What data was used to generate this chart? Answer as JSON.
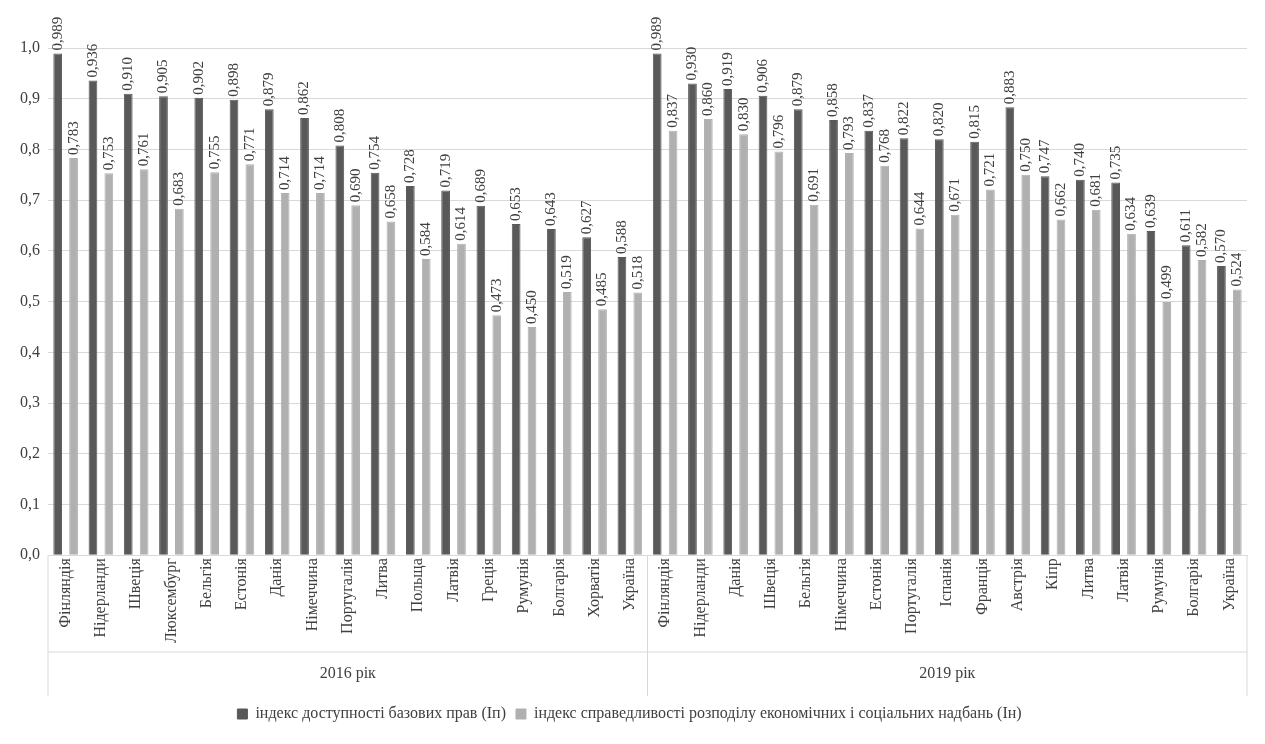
{
  "chart_data": {
    "type": "bar",
    "categories": [
      "Фінляндія",
      "Нідерланди",
      "Швеція",
      "Люксембург",
      "Бельгія",
      "Естонія",
      "Данія",
      "Німеччина",
      "Португалія",
      "Литва",
      "Польща",
      "Латвія",
      "Греція",
      "Румунія",
      "Болгарія",
      "Хорватія",
      "Україна",
      "Фінляндія",
      "Нідерланди",
      "Данія",
      "Швеція",
      "Бельгія",
      "Німеччина",
      "Естонія",
      "Португалія",
      "Іспанія",
      "Франція",
      "Австрія",
      "Кіпр",
      "Литва",
      "Латвія",
      "Румунія",
      "Болгарія",
      "Україна"
    ],
    "series": [
      {
        "name": "індекс доступності базових прав (Іп)",
        "color": "#595959",
        "values": [
          0.989,
          0.936,
          0.91,
          0.905,
          0.902,
          0.898,
          0.879,
          0.862,
          0.808,
          0.754,
          0.728,
          0.719,
          0.689,
          0.653,
          0.643,
          0.627,
          0.588,
          0.989,
          0.93,
          0.919,
          0.906,
          0.879,
          0.858,
          0.837,
          0.822,
          0.82,
          0.815,
          0.883,
          0.747,
          0.74,
          0.735,
          0.639,
          0.611,
          0.57
        ],
        "value_labels": [
          "0,989",
          "0,936",
          "0,910",
          "0,905",
          "0,902",
          "0,898",
          "0,879",
          "0,862",
          "0,808",
          "0,754",
          "0,728",
          "0,719",
          "0,689",
          "0,653",
          "0,643",
          "0,627",
          "0,588",
          "0,989",
          "0,930",
          "0,919",
          "0,906",
          "0,879",
          "0,858",
          "0,837",
          "0,822",
          "0,820",
          "0,815",
          "0,883",
          "0,747",
          "0,740",
          "0,735",
          "0,639",
          "0,611",
          "0,570"
        ]
      },
      {
        "name": "індекс справедливості розподілу економічних і соціальних надбань (Ін)",
        "color": "#b0b0b0",
        "values": [
          0.783,
          0.753,
          0.761,
          0.683,
          0.755,
          0.771,
          0.714,
          0.714,
          0.69,
          0.658,
          0.584,
          0.614,
          0.473,
          0.45,
          0.519,
          0.485,
          0.518,
          0.837,
          0.86,
          0.83,
          0.796,
          0.691,
          0.793,
          0.768,
          0.644,
          0.671,
          0.721,
          0.75,
          0.662,
          0.681,
          0.634,
          0.499,
          0.582,
          0.524
        ],
        "value_labels": [
          "0,783",
          "0,753",
          "0,761",
          "0,683",
          "0,755",
          "0,771",
          "0,714",
          "0,714",
          "0,690",
          "0,658",
          "0,584",
          "0,614",
          "0,473",
          "0,450",
          "0,519",
          "0,485",
          "0,518",
          "0,837",
          "0,860",
          "0,830",
          "0,796",
          "0,691",
          "0,793",
          "0,768",
          "0,644",
          "0,671",
          "0,721",
          "0,750",
          "0,662",
          "0,681",
          "0,634",
          "0,499",
          "0,582",
          "0,524"
        ]
      }
    ],
    "annotations": [
      "2016 рік",
      "2019 рік"
    ],
    "ylim": [
      0,
      1.0
    ],
    "yticks": [
      {
        "value": 0,
        "label": "0,0"
      },
      {
        "value": 0.1,
        "label": "0,1"
      },
      {
        "value": 0.2,
        "label": "0,2"
      },
      {
        "value": 0.3,
        "label": "0,3"
      },
      {
        "value": 0.4,
        "label": "0,4"
      },
      {
        "value": 0.5,
        "label": "0,5"
      },
      {
        "value": 0.6,
        "label": "0,6"
      },
      {
        "value": 0.7,
        "label": "0,7"
      },
      {
        "value": 0.8,
        "label": "0,8"
      },
      {
        "value": 0.9,
        "label": "0,9"
      },
      {
        "value": 1.0,
        "label": "1,0"
      }
    ],
    "grid": "y",
    "legend": "bottom"
  }
}
